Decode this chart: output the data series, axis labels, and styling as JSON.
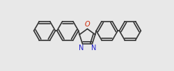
{
  "bg_color": "#e8e8e8",
  "bond_color": "#333333",
  "bond_lw": 1.2,
  "dbo": 0.012,
  "figsize": [
    2.51,
    1.02
  ],
  "dpi": 100,
  "font_size": 7.0,
  "N_color": "#2222cc",
  "O_color": "#cc2200",
  "xlim": [
    -1.05,
    1.05
  ],
  "ylim": [
    -0.42,
    0.42
  ]
}
